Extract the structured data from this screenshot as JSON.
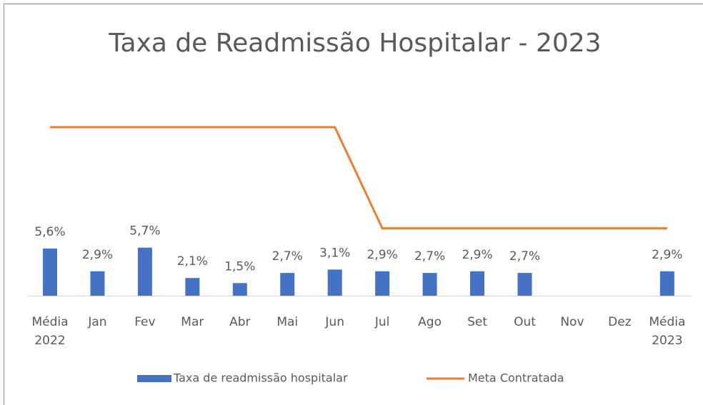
{
  "chart_data": {
    "type": "bar",
    "title": "Taxa de Readmissão Hospitalar - 2023",
    "categories": [
      "Média 2022",
      "Jan",
      "Fev",
      "Mar",
      "Abr",
      "Mai",
      "Jun",
      "Jul",
      "Ago",
      "Set",
      "Out",
      "Nov",
      "Dez",
      "Média 2023"
    ],
    "series": [
      {
        "name": "Taxa de readmissão hospitalar",
        "type": "bar",
        "color": "#4472c4",
        "values": [
          5.6,
          2.9,
          5.7,
          2.1,
          1.5,
          2.7,
          3.1,
          2.9,
          2.7,
          2.9,
          2.7,
          null,
          null,
          2.9
        ],
        "value_labels": [
          "5,6%",
          "2,9%",
          "5,7%",
          "2,1%",
          "1,5%",
          "2,7%",
          "3,1%",
          "2,9%",
          "2,7%",
          "2,9%",
          "2,7%",
          null,
          null,
          "2,9%"
        ]
      },
      {
        "name": "Meta Contratada",
        "type": "line",
        "color": "#ed7d31",
        "values": [
          20,
          20,
          20,
          20,
          20,
          20,
          20,
          8,
          8,
          8,
          8,
          8,
          8,
          8
        ]
      }
    ],
    "legend": "bottom"
  }
}
